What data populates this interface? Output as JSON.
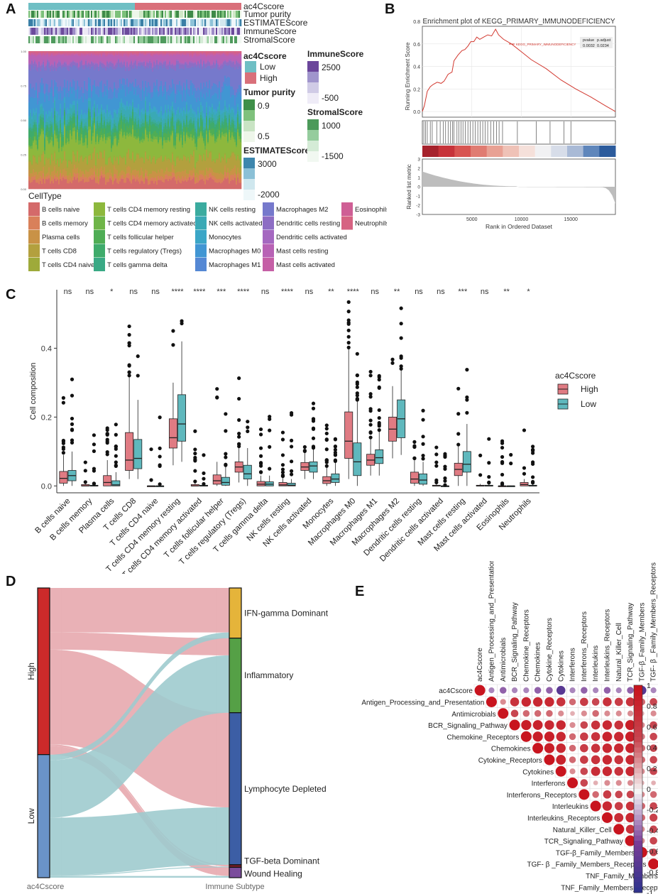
{
  "panels": {
    "A": "A",
    "B": "B",
    "C": "C",
    "D": "D",
    "E": "E"
  },
  "colors": {
    "high": "#d9707a",
    "low": "#6fbfc4",
    "teal": "#5fb8bd",
    "pink": "#e07b83",
    "high_alluvial": "#e7a9ae",
    "low_alluvial": "#9fcbce",
    "high_bar": "#cc2a2a",
    "low_bar": "#6a93c8"
  },
  "panelA": {
    "tracks": [
      "ac4Cscore",
      "Tumor purity",
      "ESTIMATEScore",
      "ImmuneScore",
      "StromalScore"
    ],
    "yticks": [
      "1.00",
      "0.75",
      "0.50",
      "0.25",
      "0.00"
    ],
    "celltype_title": "CellType",
    "legend_ac4c": {
      "title": "ac4Cscore",
      "items": [
        "Low",
        "High"
      ]
    },
    "legend_tumor": {
      "title": "Tumor purity",
      "ticks": [
        "0.9",
        "0.5"
      ]
    },
    "legend_estimate": {
      "title": "ESTIMATEScore",
      "ticks": [
        "3000",
        "-2000"
      ]
    },
    "legend_immune": {
      "title": "ImmuneScore",
      "ticks": [
        "2500",
        "-500"
      ]
    },
    "legend_stromal": {
      "title": "StromalScore",
      "ticks": [
        "1000",
        "-1500"
      ]
    },
    "celltypes": [
      {
        "name": "B cells naive",
        "color": "#d46a6a"
      },
      {
        "name": "B cells memory",
        "color": "#d9805a"
      },
      {
        "name": "Plasma cells",
        "color": "#c99246"
      },
      {
        "name": "T cells CD8",
        "color": "#b3a03e"
      },
      {
        "name": "T cells CD4 naive",
        "color": "#9eaa3a"
      },
      {
        "name": "T cells CD4 memory resting",
        "color": "#8db83d"
      },
      {
        "name": "T cells CD4 memory activated",
        "color": "#6fb548"
      },
      {
        "name": "T cells follicular helper",
        "color": "#4fad55"
      },
      {
        "name": "T cells regulatory (Tregs)",
        "color": "#3fab6b"
      },
      {
        "name": "T cells gamma delta",
        "color": "#3aa985"
      },
      {
        "name": "NK cells resting",
        "color": "#3bab9f"
      },
      {
        "name": "NK cells activated",
        "color": "#3aa9b5"
      },
      {
        "name": "Monocytes",
        "color": "#3ba6c7"
      },
      {
        "name": "Macrophages M0",
        "color": "#4196d3"
      },
      {
        "name": "Macrophages M1",
        "color": "#5588d4"
      },
      {
        "name": "Macrophages M2",
        "color": "#7679cc"
      },
      {
        "name": "Dendritic cells resting",
        "color": "#8d6dc4"
      },
      {
        "name": "Dendritic cells activated",
        "color": "#a568c0"
      },
      {
        "name": "Mast cells resting",
        "color": "#b862b5"
      },
      {
        "name": "Mast cells activated",
        "color": "#c55fa6"
      },
      {
        "name": "Eosinophils",
        "color": "#cf5f95"
      },
      {
        "name": "Neutrophils",
        "color": "#d66382"
      }
    ]
  },
  "panelB": {
    "title": "Enrichment plot of KEGG_PRIMARY_IMMUNODEFICIENCY",
    "ylabel_top": "Running Enrichment Score",
    "ylabel_bottom": "Ranked list metric",
    "xlabel": "Rank in Ordered Dataset",
    "yticks_top": [
      "0.8",
      "0.6",
      "0.4",
      "0.2",
      "0.0"
    ],
    "yticks_bottom": [
      "3",
      "2",
      "1",
      "0",
      "-1",
      "-2",
      "-3"
    ],
    "xticks": [
      "5000",
      "10000",
      "15000"
    ],
    "table_headers": [
      "pvalue",
      "p.adjust"
    ],
    "table_values": [
      "0.0032",
      "0.0234"
    ],
    "series_label": "KEGG_PRIMARY_IMMUNODEFICIENCY"
  },
  "chart_data": [
    {
      "type": "line",
      "title": "Enrichment plot of KEGG_PRIMARY_IMMUNODEFICIENCY",
      "xlabel": "Rank in Ordered Dataset",
      "ylabel": "Running Enrichment Score",
      "xlim": [
        0,
        19500
      ],
      "ylim": [
        -0.05,
        0.8
      ],
      "x": [
        0,
        200,
        500,
        800,
        1100,
        1500,
        1900,
        2200,
        2600,
        3000,
        3200,
        3600,
        4000,
        4300,
        4600,
        4900,
        5200,
        5500,
        5800,
        6200,
        6600,
        7000,
        7400,
        7700,
        8200,
        9000,
        10000,
        11000,
        12500,
        14000,
        15500,
        17000,
        18500,
        19500
      ],
      "y": [
        0.0,
        0.05,
        0.18,
        0.22,
        0.24,
        0.26,
        0.25,
        0.27,
        0.33,
        0.35,
        0.45,
        0.5,
        0.54,
        0.55,
        0.58,
        0.62,
        0.62,
        0.66,
        0.64,
        0.66,
        0.68,
        0.67,
        0.73,
        0.68,
        0.64,
        0.6,
        0.53,
        0.46,
        0.38,
        0.28,
        0.2,
        0.13,
        0.05,
        0.0
      ],
      "hits": [
        150,
        320,
        500,
        800,
        1000,
        1450,
        1800,
        2100,
        2350,
        2600,
        2850,
        3050,
        3200,
        3500,
        3700,
        3900,
        4100,
        4350,
        4600,
        4850,
        5100,
        5350,
        5600,
        5850,
        6100,
        6350,
        6600,
        6900,
        7200,
        7500,
        7750,
        8100,
        9600,
        11500,
        12900,
        14300,
        15000
      ],
      "pvalue": 0.0032,
      "p_adjust": 0.0234
    },
    {
      "type": "box",
      "xlabel": "",
      "ylabel": "Cell composition",
      "ylim": [
        -0.02,
        0.57
      ],
      "yticks": [
        0.0,
        0.2,
        0.4
      ],
      "legend_title": "ac4Cscore",
      "legend": [
        "High",
        "Low"
      ],
      "categories": [
        "B cells naive",
        "B cells memory",
        "Plasma cells",
        "T cells CD8",
        "T cells CD4 naive",
        "T cells CD4 memory resting",
        "T cells CD4 memory activated",
        "T cells follicular helper",
        "T cells regulatory (Tregs)",
        "T cells gamma delta",
        "NK cells resting",
        "NK cells activated",
        "Monocytes",
        "Macrophages M0",
        "Macrophages M1",
        "Macrophages M2",
        "Dendritic cells resting",
        "Dendritic cells activated",
        "Mast cells resting",
        "Mast cells activated",
        "Eosinophils",
        "Neutrophils"
      ],
      "significance": [
        "ns",
        "ns",
        "*",
        "ns",
        "ns",
        "****",
        "****",
        "***",
        "****",
        "ns",
        "****",
        "ns",
        "**",
        "****",
        "ns",
        "**",
        "ns",
        "ns",
        "***",
        "ns",
        "**",
        "*"
      ],
      "series": [
        {
          "name": "High",
          "boxes": [
            [
              0.0,
              0.008,
              0.022,
              0.042,
              0.09
            ],
            [
              0.0,
              0.0,
              0.0,
              0.004,
              0.01
            ],
            [
              0.0,
              0.0,
              0.01,
              0.03,
              0.075
            ],
            [
              0.02,
              0.045,
              0.075,
              0.155,
              0.32
            ],
            [
              0.0,
              0.0,
              0.0,
              0.0,
              0.0
            ],
            [
              0.06,
              0.11,
              0.14,
              0.195,
              0.3
            ],
            [
              0.0,
              0.0,
              0.0,
              0.004,
              0.01
            ],
            [
              0.0,
              0.005,
              0.015,
              0.032,
              0.07
            ],
            [
              0.01,
              0.04,
              0.055,
              0.07,
              0.11
            ],
            [
              0.0,
              0.0,
              0.005,
              0.013,
              0.03
            ],
            [
              0.0,
              0.0,
              0.003,
              0.01,
              0.025
            ],
            [
              0.02,
              0.045,
              0.055,
              0.068,
              0.1
            ],
            [
              0.0,
              0.007,
              0.015,
              0.027,
              0.055
            ],
            [
              0.02,
              0.08,
              0.13,
              0.215,
              0.4
            ],
            [
              0.03,
              0.06,
              0.075,
              0.092,
              0.14
            ],
            [
              0.08,
              0.13,
              0.165,
              0.2,
              0.29
            ],
            [
              0.0,
              0.008,
              0.02,
              0.04,
              0.08
            ],
            [
              0.0,
              0.0,
              0.0,
              0.002,
              0.006
            ],
            [
              0.0,
              0.03,
              0.048,
              0.066,
              0.12
            ],
            [
              0.0,
              0.0,
              0.0,
              0.002,
              0.006
            ],
            [
              0.0,
              0.0,
              0.0,
              0.0,
              0.002
            ],
            [
              0.0,
              0.0,
              0.004,
              0.01,
              0.02
            ]
          ]
        },
        {
          "name": "Low",
          "boxes": [
            [
              0.0,
              0.015,
              0.03,
              0.045,
              0.1
            ],
            [
              0.0,
              0.0,
              0.0,
              0.002,
              0.005
            ],
            [
              0.0,
              0.0,
              0.003,
              0.015,
              0.04
            ],
            [
              0.02,
              0.05,
              0.08,
              0.135,
              0.25
            ],
            [
              0.0,
              0.0,
              0.0,
              0.0,
              0.0
            ],
            [
              0.07,
              0.13,
              0.18,
              0.265,
              0.42
            ],
            [
              0.0,
              0.0,
              0.0,
              0.002,
              0.005
            ],
            [
              0.0,
              0.002,
              0.01,
              0.025,
              0.06
            ],
            [
              0.0,
              0.02,
              0.035,
              0.06,
              0.11
            ],
            [
              0.0,
              0.0,
              0.005,
              0.012,
              0.03
            ],
            [
              0.0,
              0.0,
              0.002,
              0.008,
              0.02
            ],
            [
              0.02,
              0.04,
              0.058,
              0.07,
              0.11
            ],
            [
              0.0,
              0.01,
              0.02,
              0.035,
              0.07
            ],
            [
              0.0,
              0.03,
              0.07,
              0.125,
              0.25
            ],
            [
              0.03,
              0.065,
              0.082,
              0.105,
              0.16
            ],
            [
              0.09,
              0.14,
              0.195,
              0.25,
              0.34
            ],
            [
              0.0,
              0.005,
              0.017,
              0.035,
              0.07
            ],
            [
              0.0,
              0.0,
              0.0,
              0.0,
              0.002
            ],
            [
              0.0,
              0.04,
              0.063,
              0.1,
              0.18
            ],
            [
              0.0,
              0.0,
              0.0,
              0.002,
              0.005
            ],
            [
              0.0,
              0.0,
              0.0,
              0.0,
              0.001
            ],
            [
              0.0,
              0.0,
              0.0,
              0.002,
              0.008
            ]
          ]
        }
      ]
    },
    {
      "type": "sankey",
      "left_axis": "ac4Cscore",
      "right_axis": "Immune Subtype",
      "left_nodes": [
        "High",
        "Low"
      ],
      "right_nodes": [
        "IFN-gamma Dominant",
        "Inflammatory",
        "Lymphocyte Depleted",
        "TGF-beta Dominant",
        "Wound Healing"
      ],
      "flows": [
        {
          "from": "High",
          "to": "IFN-gamma Dominant",
          "value": 0.155
        },
        {
          "from": "High",
          "to": "Inflammatory",
          "value": 0.06
        },
        {
          "from": "High",
          "to": "Lymphocyte Depleted",
          "value": 0.33
        },
        {
          "from": "High",
          "to": "TGF-beta Dominant",
          "value": 0.006
        },
        {
          "from": "High",
          "to": "Wound Healing",
          "value": 0.03
        },
        {
          "from": "Low",
          "to": "IFN-gamma Dominant",
          "value": 0.02
        },
        {
          "from": "Low",
          "to": "Inflammatory",
          "value": 0.2
        },
        {
          "from": "Low",
          "to": "Lymphocyte Depleted",
          "value": 0.2
        },
        {
          "from": "Low",
          "to": "TGF-beta Dominant",
          "value": 0.003
        },
        {
          "from": "Low",
          "to": "Wound Healing",
          "value": 0.006
        }
      ]
    },
    {
      "type": "heatmap",
      "subtype": "correlation-upper-triangle",
      "variables": [
        "ac4Cscore",
        "Antigen_Processing_and_Presentation",
        "Antimicrobials",
        "BCR_Signaling_Pathway",
        "Chemokine_Receptors",
        "Chemokines",
        "Cytokine_Receptors",
        "Cytokines",
        "Interferons",
        "Interferons_Receptors",
        "Interleukins",
        "Interleukins_Receptors",
        "Natural_Killer_Cell",
        "TCR_Signaling_Pathway",
        "TGF-β_Family_Members",
        "TGF- β _Family_Members_Receptors",
        "TNF_Family_Members",
        "TNF_Family_Members_Receptors"
      ],
      "colorbar_ticks": [
        "1",
        "0.8",
        "0.6",
        "0.4",
        "0.2",
        "0",
        "-0.2",
        "-0.4",
        "-0.6",
        "-0.8",
        "-1"
      ],
      "matrix": [
        [
          1,
          -0.3,
          -0.4,
          -0.3,
          -0.3,
          -0.4,
          -0.4,
          -0.7,
          -0.3,
          -0.4,
          -0.3,
          -0.4,
          -0.3,
          -0.4,
          -0.7,
          -0.3,
          -0.4,
          -0.3
        ],
        [
          0,
          1,
          0.3,
          0.7,
          0.8,
          0.8,
          0.8,
          0.7,
          0.4,
          0.6,
          0.5,
          0.7,
          0.6,
          0.7,
          0.4,
          0.5,
          0.7,
          0.7
        ],
        [
          0,
          0,
          1,
          0.5,
          0.4,
          0.4,
          0.4,
          0.3,
          0.2,
          0.3,
          0.4,
          0.3,
          0.3,
          0.3,
          0.2,
          0.3,
          0.5,
          0.4
        ],
        [
          0,
          0,
          0,
          1,
          0.9,
          0.85,
          0.8,
          0.8,
          0.3,
          0.5,
          0.7,
          0.8,
          0.7,
          0.9,
          0.3,
          0.5,
          0.8,
          0.8
        ],
        [
          0,
          0,
          0,
          0,
          1,
          0.9,
          0.9,
          0.8,
          0.4,
          0.6,
          0.7,
          0.85,
          0.8,
          0.9,
          0.35,
          0.5,
          0.8,
          0.8
        ],
        [
          0,
          0,
          0,
          0,
          0,
          1,
          0.9,
          0.8,
          0.4,
          0.6,
          0.7,
          0.8,
          0.8,
          0.85,
          0.4,
          0.5,
          0.8,
          0.8
        ],
        [
          0,
          0,
          0,
          0,
          0,
          0,
          1,
          0.85,
          0.4,
          0.6,
          0.7,
          0.8,
          0.7,
          0.8,
          0.4,
          0.5,
          0.8,
          0.8
        ],
        [
          0,
          0,
          0,
          0,
          0,
          0,
          0,
          1,
          0.3,
          0.5,
          0.75,
          0.8,
          0.7,
          0.8,
          0.3,
          0.5,
          0.8,
          0.8
        ],
        [
          0,
          0,
          0,
          0,
          0,
          0,
          0,
          0,
          1,
          0.5,
          0.2,
          0.3,
          0.3,
          0.3,
          0.2,
          0.2,
          0.3,
          0.3
        ],
        [
          0,
          0,
          0,
          0,
          0,
          0,
          0,
          0,
          0,
          1,
          0.4,
          0.6,
          0.5,
          0.5,
          0.3,
          0.4,
          0.5,
          0.5
        ],
        [
          0,
          0,
          0,
          0,
          0,
          0,
          0,
          0,
          0,
          0,
          1,
          0.8,
          0.6,
          0.7,
          0.4,
          0.5,
          0.7,
          0.8
        ],
        [
          0,
          0,
          0,
          0,
          0,
          0,
          0,
          0,
          0,
          0,
          0,
          1,
          0.75,
          0.8,
          0.4,
          0.55,
          0.8,
          0.85
        ],
        [
          0,
          0,
          0,
          0,
          0,
          0,
          0,
          0,
          0,
          0,
          0,
          0,
          1,
          0.7,
          0.3,
          0.5,
          0.7,
          0.7
        ],
        [
          0,
          0,
          0,
          0,
          0,
          0,
          0,
          0,
          0,
          0,
          0,
          0,
          0,
          1,
          0.3,
          0.5,
          0.8,
          0.8
        ],
        [
          0,
          0,
          0,
          0,
          0,
          0,
          0,
          0,
          0,
          0,
          0,
          0,
          0,
          0,
          1,
          0.5,
          0.4,
          0.5
        ],
        [
          0,
          0,
          0,
          0,
          0,
          0,
          0,
          0,
          0,
          0,
          0,
          0,
          0,
          0,
          0,
          1,
          0.5,
          0.6
        ],
        [
          0,
          0,
          0,
          0,
          0,
          0,
          0,
          0,
          0,
          0,
          0,
          0,
          0,
          0,
          0,
          0,
          1,
          0.8
        ],
        [
          0,
          0,
          0,
          0,
          0,
          0,
          0,
          0,
          0,
          0,
          0,
          0,
          0,
          0,
          0,
          0,
          0,
          1
        ]
      ]
    }
  ]
}
